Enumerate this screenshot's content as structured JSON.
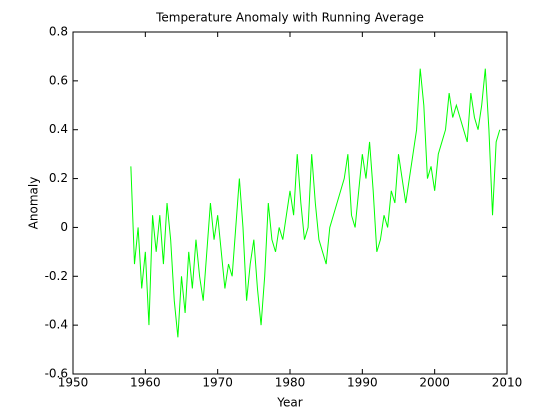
{
  "chart_data": {
    "type": "line",
    "title": "Temperature Anomaly with Running Average",
    "xlabel": "Year",
    "ylabel": "Anomaly",
    "x": [
      1958,
      1958.5,
      1959,
      1959.5,
      1960,
      1960.5,
      1961,
      1961.5,
      1962,
      1962.5,
      1963,
      1963.5,
      1964,
      1964.5,
      1965,
      1965.5,
      1966,
      1966.5,
      1967,
      1967.5,
      1968,
      1968.5,
      1969,
      1969.5,
      1970,
      1970.5,
      1971,
      1971.5,
      1972,
      1972.5,
      1973,
      1973.5,
      1974,
      1974.5,
      1975,
      1975.5,
      1976,
      1976.5,
      1977,
      1977.5,
      1978,
      1978.5,
      1979,
      1979.5,
      1980,
      1980.5,
      1981,
      1981.5,
      1982,
      1982.5,
      1983,
      1983.5,
      1984,
      1984.5,
      1985,
      1985.5,
      1986,
      1986.5,
      1987,
      1987.5,
      1988,
      1988.5,
      1989,
      1989.5,
      1990,
      1990.5,
      1991,
      1991.5,
      1992,
      1992.5,
      1993,
      1993.5,
      1994,
      1994.5,
      1995,
      1995.5,
      1996,
      1996.5,
      1997,
      1997.5,
      1998,
      1998.5,
      1999,
      1999.5,
      2000,
      2000.5,
      2001,
      2001.5,
      2002,
      2002.5,
      2003,
      2003.5,
      2004,
      2004.5,
      2005,
      2005.5,
      2006,
      2006.5,
      2007,
      2007.5,
      2008,
      2008.5,
      2009
    ],
    "series": [
      {
        "name": "Anomaly",
        "color": "#00ff00",
        "values": [
          0.25,
          -0.15,
          0.0,
          -0.25,
          -0.1,
          -0.4,
          0.05,
          -0.1,
          0.05,
          -0.15,
          0.1,
          -0.05,
          -0.3,
          -0.45,
          -0.2,
          -0.35,
          -0.1,
          -0.25,
          -0.05,
          -0.2,
          -0.3,
          -0.1,
          0.1,
          -0.05,
          0.05,
          -0.1,
          -0.25,
          -0.15,
          -0.2,
          0.0,
          0.2,
          0.0,
          -0.3,
          -0.15,
          -0.05,
          -0.25,
          -0.4,
          -0.2,
          0.1,
          -0.05,
          -0.1,
          0.0,
          -0.05,
          0.05,
          0.15,
          0.05,
          0.3,
          0.1,
          -0.05,
          0.0,
          0.3,
          0.1,
          -0.05,
          -0.1,
          -0.15,
          0.0,
          0.05,
          0.1,
          0.15,
          0.2,
          0.3,
          0.05,
          0.0,
          0.15,
          0.3,
          0.2,
          0.35,
          0.15,
          -0.1,
          -0.05,
          0.05,
          0.0,
          0.15,
          0.1,
          0.3,
          0.2,
          0.1,
          0.2,
          0.3,
          0.4,
          0.65,
          0.5,
          0.2,
          0.25,
          0.15,
          0.3,
          0.35,
          0.4,
          0.55,
          0.45,
          0.5,
          0.45,
          0.4,
          0.35,
          0.55,
          0.45,
          0.4,
          0.5,
          0.65,
          0.4,
          0.05,
          0.35,
          0.4
        ]
      }
    ],
    "xlim": [
      1950,
      2010
    ],
    "xticks": [
      1950,
      1960,
      1970,
      1980,
      1990,
      2000,
      2010
    ],
    "ylim": [
      -0.6,
      0.8
    ],
    "yticks": [
      -0.6,
      -0.4,
      -0.2,
      0,
      0.2,
      0.4,
      0.6,
      0.8
    ]
  }
}
